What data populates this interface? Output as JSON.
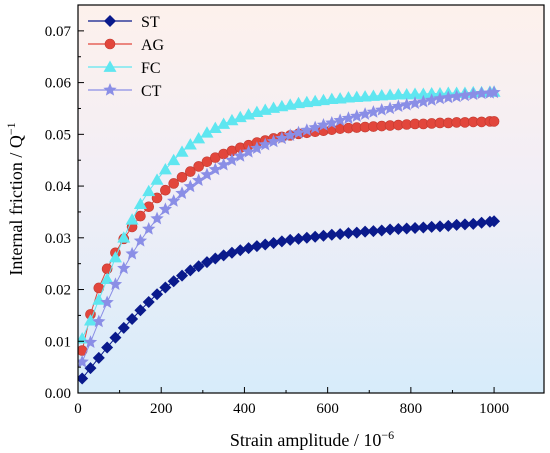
{
  "chart_data": {
    "type": "line",
    "xlabel": "Strain amplitude / 10",
    "xlabel_exponent": "−6",
    "ylabel": "Internal friction / Q",
    "ylabel_exponent": "−1",
    "xlim": [
      0,
      1120
    ],
    "ylim": [
      0,
      0.075
    ],
    "xticks": [
      0,
      200,
      400,
      600,
      800,
      1000
    ],
    "xtick_labels": [
      "0",
      "200",
      "400",
      "600",
      "800",
      "1000"
    ],
    "yticks": [
      0,
      0.01,
      0.02,
      0.03,
      0.04,
      0.05,
      0.06,
      0.07
    ],
    "ytick_labels": [
      "0.00",
      "0.01",
      "0.02",
      "0.03",
      "0.04",
      "0.05",
      "0.06",
      "0.07"
    ],
    "grid": false,
    "legend_position": "top-left",
    "x": [
      10,
      30,
      50,
      70,
      90,
      110,
      130,
      150,
      170,
      190,
      210,
      230,
      250,
      270,
      290,
      310,
      330,
      350,
      370,
      390,
      410,
      430,
      450,
      470,
      490,
      510,
      530,
      550,
      570,
      590,
      610,
      630,
      650,
      670,
      690,
      710,
      730,
      750,
      770,
      790,
      810,
      830,
      850,
      870,
      890,
      910,
      930,
      950,
      970,
      990,
      1000
    ],
    "series": [
      {
        "name": "ST",
        "marker": "diamond",
        "color": "#0a1a8c",
        "values": [
          0.0028,
          0.0048,
          0.0068,
          0.0088,
          0.0107,
          0.0126,
          0.0143,
          0.016,
          0.0176,
          0.0191,
          0.0204,
          0.0216,
          0.0227,
          0.0237,
          0.0245,
          0.0253,
          0.026,
          0.0266,
          0.0271,
          0.0276,
          0.028,
          0.0284,
          0.0287,
          0.029,
          0.0293,
          0.0296,
          0.0298,
          0.03,
          0.0302,
          0.0304,
          0.0306,
          0.0307,
          0.0309,
          0.031,
          0.0312,
          0.0313,
          0.0314,
          0.0316,
          0.0317,
          0.0318,
          0.0319,
          0.032,
          0.0321,
          0.0322,
          0.0323,
          0.0325,
          0.0326,
          0.0327,
          0.0329,
          0.0331,
          0.0332
        ]
      },
      {
        "name": "AG",
        "marker": "circle",
        "color": "#e2463c",
        "values": [
          0.0082,
          0.0152,
          0.0203,
          0.024,
          0.0271,
          0.0298,
          0.0321,
          0.0342,
          0.036,
          0.0377,
          0.0392,
          0.0405,
          0.0417,
          0.0428,
          0.0438,
          0.0447,
          0.0455,
          0.0462,
          0.0468,
          0.0474,
          0.0479,
          0.0484,
          0.0488,
          0.0492,
          0.0495,
          0.0498,
          0.0501,
          0.0503,
          0.0505,
          0.0507,
          0.0509,
          0.0511,
          0.0512,
          0.0513,
          0.0514,
          0.0515,
          0.0516,
          0.0517,
          0.0518,
          0.0519,
          0.052,
          0.052,
          0.0521,
          0.0522,
          0.0522,
          0.0523,
          0.0523,
          0.0524,
          0.0524,
          0.0525,
          0.0525
        ]
      },
      {
        "name": "FC",
        "marker": "triangle",
        "color": "#5fe6f0",
        "values": [
          0.0105,
          0.014,
          0.018,
          0.022,
          0.0262,
          0.03,
          0.0335,
          0.0365,
          0.039,
          0.0412,
          0.0432,
          0.045,
          0.0466,
          0.048,
          0.0492,
          0.0503,
          0.0512,
          0.052,
          0.0527,
          0.0533,
          0.0538,
          0.0543,
          0.0547,
          0.0551,
          0.0554,
          0.0557,
          0.056,
          0.0562,
          0.0564,
          0.0566,
          0.0568,
          0.0569,
          0.0571,
          0.0572,
          0.0573,
          0.0574,
          0.0575,
          0.0576,
          0.0577,
          0.0577,
          0.0578,
          0.0578,
          0.0579,
          0.0579,
          0.058,
          0.058,
          0.058,
          0.0581,
          0.0581,
          0.0582,
          0.0582
        ]
      },
      {
        "name": "CT",
        "marker": "star",
        "color": "#8a8ee6",
        "values": [
          0.006,
          0.0098,
          0.0138,
          0.0175,
          0.021,
          0.0241,
          0.0269,
          0.0294,
          0.0317,
          0.0337,
          0.0355,
          0.0371,
          0.0386,
          0.0399,
          0.0411,
          0.0422,
          0.0432,
          0.0441,
          0.045,
          0.0458,
          0.0466,
          0.0473,
          0.048,
          0.0486,
          0.0492,
          0.0498,
          0.0503,
          0.0508,
          0.0513,
          0.0518,
          0.0522,
          0.0527,
          0.0531,
          0.0535,
          0.0539,
          0.0543,
          0.0547,
          0.055,
          0.0554,
          0.0557,
          0.056,
          0.0563,
          0.0566,
          0.0569,
          0.0571,
          0.0573,
          0.0575,
          0.0577,
          0.0579,
          0.058,
          0.0581
        ]
      }
    ]
  }
}
